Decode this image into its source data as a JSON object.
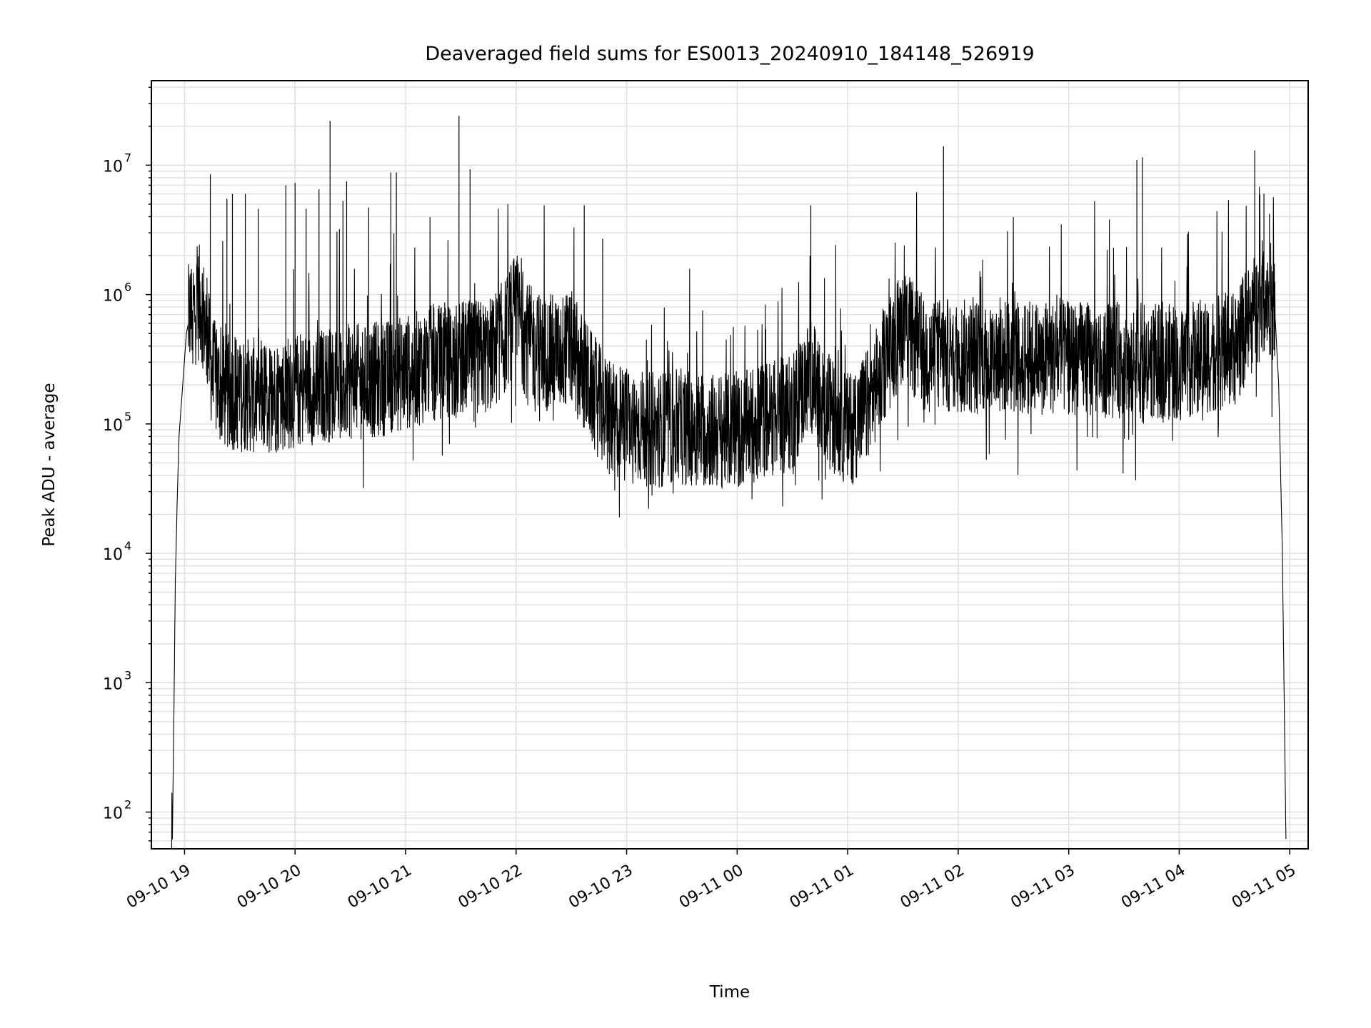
{
  "chart_data": {
    "type": "line",
    "title": "Deaveraged field sums for ES0013_20240910_184148_526919",
    "xlabel": "Time",
    "ylabel": "Peak ADU - average",
    "yscale": "log",
    "ylim": [
      52,
      45000000
    ],
    "xlim": [
      "2024-09-10T18:42:00",
      "2024-09-11T05:10:00"
    ],
    "x_ticks": [
      "09-10 19",
      "09-10 20",
      "09-10 21",
      "09-10 22",
      "09-10 23",
      "09-11 00",
      "09-11 01",
      "09-11 02",
      "09-11 03",
      "09-11 04",
      "09-11 05"
    ],
    "y_ticks": [
      {
        "base": "10",
        "exp": "2",
        "value": 100
      },
      {
        "base": "10",
        "exp": "3",
        "value": 1000
      },
      {
        "base": "10",
        "exp": "4",
        "value": 10000
      },
      {
        "base": "10",
        "exp": "5",
        "value": 100000
      },
      {
        "base": "10",
        "exp": "6",
        "value": 1000000
      },
      {
        "base": "10",
        "exp": "7",
        "value": 10000000
      }
    ],
    "grid": true,
    "line_color": "#000000",
    "grid_color": "#e0e0e0",
    "series": [
      {
        "points": [
          [
            "2024-09-10T18:53:00",
            52
          ],
          [
            "2024-09-10T18:53:10",
            180
          ],
          [
            "2024-09-10T18:53:20",
            52
          ],
          [
            "2024-09-10T18:54:00",
            300
          ],
          [
            "2024-09-10T18:55:00",
            6000
          ],
          [
            "2024-09-10T18:56:00",
            25000
          ],
          [
            "2024-09-10T18:57:00",
            80000
          ],
          [
            "2024-09-10T18:59:00",
            200000
          ],
          [
            "2024-09-10T19:01:00",
            500000
          ],
          [
            "2024-09-10T19:03:00",
            700000
          ],
          [
            "2024-09-10T19:06:00",
            800000
          ],
          [
            "2024-09-10T19:09:00",
            900000
          ],
          [
            "2024-09-10T19:12:00",
            500000
          ],
          [
            "2024-09-10T19:15:00",
            250000
          ],
          [
            "2024-09-10T19:20:00",
            180000
          ],
          [
            "2024-09-10T19:30:00",
            170000
          ],
          [
            "2024-09-10T19:45:00",
            160000
          ],
          [
            "2024-09-10T20:00:00",
            180000
          ],
          [
            "2024-09-10T20:15:00",
            200000
          ],
          [
            "2024-09-10T20:30:00",
            210000
          ],
          [
            "2024-09-10T20:45:00",
            220000
          ],
          [
            "2024-09-10T21:00:00",
            250000
          ],
          [
            "2024-09-10T21:15:00",
            300000
          ],
          [
            "2024-09-10T21:30:00",
            320000
          ],
          [
            "2024-09-10T21:45:00",
            330000
          ],
          [
            "2024-09-10T21:55:00",
            500000
          ],
          [
            "2024-09-10T22:00:00",
            800000
          ],
          [
            "2024-09-10T22:05:00",
            450000
          ],
          [
            "2024-09-10T22:15:00",
            350000
          ],
          [
            "2024-09-10T22:30:00",
            380000
          ],
          [
            "2024-09-10T22:40:00",
            200000
          ],
          [
            "2024-09-10T22:50:00",
            110000
          ],
          [
            "2024-09-10T23:00:00",
            100000
          ],
          [
            "2024-09-10T23:15:00",
            90000
          ],
          [
            "2024-09-10T23:30:00",
            95000
          ],
          [
            "2024-09-10T23:45:00",
            90000
          ],
          [
            "2024-09-11T00:00:00",
            85000
          ],
          [
            "2024-09-11T00:15:00",
            110000
          ],
          [
            "2024-09-11T00:30:00",
            120000
          ],
          [
            "2024-09-11T00:40:00",
            250000
          ],
          [
            "2024-09-11T00:45:00",
            150000
          ],
          [
            "2024-09-11T01:00:00",
            90000
          ],
          [
            "2024-09-11T01:10:00",
            130000
          ],
          [
            "2024-09-11T01:20:00",
            300000
          ],
          [
            "2024-09-11T01:30:00",
            600000
          ],
          [
            "2024-09-11T01:40:00",
            350000
          ],
          [
            "2024-09-11T02:00:00",
            330000
          ],
          [
            "2024-09-11T02:30:00",
            330000
          ],
          [
            "2024-09-11T03:00:00",
            320000
          ],
          [
            "2024-09-11T03:30:00",
            310000
          ],
          [
            "2024-09-11T04:00:00",
            300000
          ],
          [
            "2024-09-11T04:30:00",
            380000
          ],
          [
            "2024-09-11T04:40:00",
            700000
          ],
          [
            "2024-09-11T04:48:00",
            1100000
          ],
          [
            "2024-09-11T04:52:00",
            700000
          ],
          [
            "2024-09-11T04:54:00",
            200000
          ],
          [
            "2024-09-11T04:56:00",
            10000
          ],
          [
            "2024-09-11T04:58:00",
            52
          ]
        ],
        "spikes": [
          [
            "2024-09-10T19:14:00",
            8500000
          ],
          [
            "2024-09-10T19:23:00",
            5500000
          ],
          [
            "2024-09-10T19:26:00",
            6000000
          ],
          [
            "2024-09-10T19:33:00",
            6000000
          ],
          [
            "2024-09-10T19:40:00",
            4600000
          ],
          [
            "2024-09-10T19:55:00",
            7000000
          ],
          [
            "2024-09-10T20:00:00",
            7300000
          ],
          [
            "2024-09-10T20:06:00",
            4600000
          ],
          [
            "2024-09-10T20:13:00",
            6500000
          ],
          [
            "2024-09-10T20:19:00",
            22000000
          ],
          [
            "2024-09-10T20:26:00",
            5300000
          ],
          [
            "2024-09-10T20:28:00",
            7500000
          ],
          [
            "2024-09-10T20:40:00",
            4700000
          ],
          [
            "2024-09-10T20:52:00",
            8800000
          ],
          [
            "2024-09-10T20:55:00",
            8800000
          ],
          [
            "2024-09-10T21:29:00",
            24000000
          ],
          [
            "2024-09-10T21:35:00",
            9300000
          ],
          [
            "2024-09-10T22:37:00",
            4900000
          ],
          [
            "2024-09-10T22:47:00",
            2700000
          ],
          [
            "2024-09-11T00:40:00",
            4900000
          ],
          [
            "2024-09-11T01:52:00",
            14000000
          ],
          [
            "2024-09-11T03:37:00",
            11000000
          ],
          [
            "2024-09-11T03:40:00",
            11500000
          ],
          [
            "2024-09-11T04:41:00",
            13000000
          ],
          [
            "2024-09-11T04:46:00",
            6000000
          ],
          [
            "2024-09-11T04:49:00",
            4200000
          ]
        ]
      }
    ]
  }
}
